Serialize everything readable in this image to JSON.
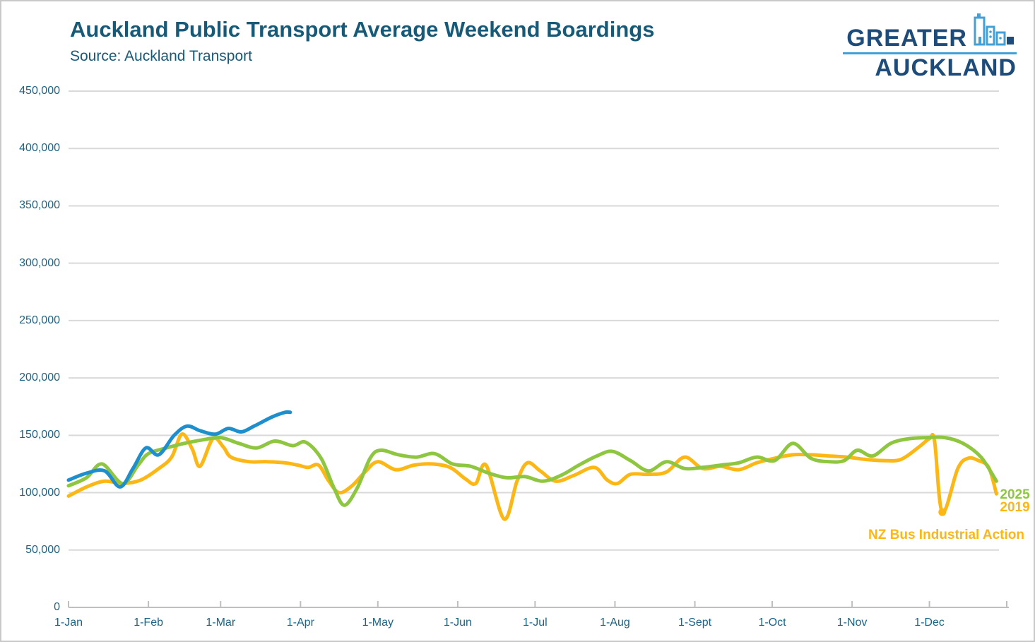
{
  "page": {
    "title": "Auckland Public Transport Average Weekend Boardings",
    "source": "Source: Auckland Transport"
  },
  "logo": {
    "top": "GREATER",
    "bottom": "AUCKLAND",
    "skyline_icon": "city-skyline",
    "navy": "#1d4b7a",
    "light_blue": "#42a0d8"
  },
  "colors": {
    "title_text": "#175a78",
    "axis_text": "#1d6484",
    "gridline": "#d9d9d9",
    "axis_line": "#bfbfbf",
    "blue_series": "#1e8fce",
    "green_series": "#8ec63f",
    "orange_series": "#fdb714"
  },
  "chart_data": {
    "type": "line",
    "title": "Auckland Public Transport Average Weekend Boardings",
    "subtitle": "Source: Auckland Transport",
    "grid": "horizontal",
    "legend_style": "end-of-line-labels",
    "x_axis": {
      "labels": [
        "1-Jan",
        "1-Feb",
        "1-Mar",
        "1-Apr",
        "1-May",
        "1-Jun",
        "1-Jul",
        "1-Aug",
        "1-Sept",
        "1-Oct",
        "1-Nov",
        "1-Dec"
      ],
      "label_days": [
        0,
        31,
        59,
        90,
        120,
        151,
        181,
        212,
        243,
        273,
        304,
        334
      ],
      "range_days": [
        0,
        364
      ]
    },
    "y_axis": {
      "labels": [
        "450,000",
        "400,000",
        "350,000",
        "300,000",
        "250,000",
        "200,000",
        "150,000",
        "100,000",
        "50,000",
        "0"
      ],
      "min": 0,
      "max": 450000,
      "step": 50000
    },
    "series": [
      {
        "id": "blue-partial-year",
        "label": null,
        "color": "#1e8fce",
        "points_day_value": [
          [
            0,
            111000
          ],
          [
            7,
            117000
          ],
          [
            14,
            119000
          ],
          [
            20,
            105000
          ],
          [
            25,
            121000
          ],
          [
            30,
            139000
          ],
          [
            35,
            133000
          ],
          [
            41,
            150000
          ],
          [
            46,
            158000
          ],
          [
            51,
            154000
          ],
          [
            57,
            151000
          ],
          [
            62,
            156000
          ],
          [
            67,
            153000
          ],
          [
            72,
            158000
          ],
          [
            79,
            166000
          ],
          [
            84,
            170000
          ],
          [
            86,
            170000
          ]
        ]
      },
      {
        "id": "year-2025",
        "label": "2025",
        "color": "#8ec63f",
        "points_day_value": [
          [
            0,
            106000
          ],
          [
            7,
            113000
          ],
          [
            13,
            125000
          ],
          [
            21,
            108000
          ],
          [
            27,
            124000
          ],
          [
            31,
            134000
          ],
          [
            38,
            139000
          ],
          [
            45,
            143000
          ],
          [
            52,
            146000
          ],
          [
            59,
            148000
          ],
          [
            66,
            143000
          ],
          [
            73,
            139000
          ],
          [
            80,
            145000
          ],
          [
            87,
            141000
          ],
          [
            92,
            144000
          ],
          [
            98,
            130000
          ],
          [
            103,
            104000
          ],
          [
            107,
            89000
          ],
          [
            112,
            104000
          ],
          [
            117,
            130000
          ],
          [
            121,
            137000
          ],
          [
            128,
            133000
          ],
          [
            135,
            131000
          ],
          [
            142,
            134000
          ],
          [
            149,
            125000
          ],
          [
            156,
            123000
          ],
          [
            163,
            117000
          ],
          [
            170,
            113000
          ],
          [
            177,
            114000
          ],
          [
            184,
            110000
          ],
          [
            191,
            115000
          ],
          [
            198,
            124000
          ],
          [
            205,
            132000
          ],
          [
            211,
            136000
          ],
          [
            218,
            128000
          ],
          [
            225,
            119000
          ],
          [
            232,
            127000
          ],
          [
            239,
            121000
          ],
          [
            246,
            122000
          ],
          [
            253,
            124000
          ],
          [
            260,
            126000
          ],
          [
            267,
            131000
          ],
          [
            274,
            128000
          ],
          [
            281,
            143000
          ],
          [
            288,
            130000
          ],
          [
            295,
            127000
          ],
          [
            301,
            128000
          ],
          [
            306,
            137000
          ],
          [
            312,
            132000
          ],
          [
            319,
            143000
          ],
          [
            326,
            147000
          ],
          [
            333,
            148000
          ],
          [
            340,
            148000
          ],
          [
            347,
            143000
          ],
          [
            354,
            131000
          ],
          [
            360,
            110000
          ]
        ]
      },
      {
        "id": "year-2019",
        "label": "2019",
        "color": "#fdb714",
        "points_day_value": [
          [
            0,
            97000
          ],
          [
            7,
            105000
          ],
          [
            14,
            110000
          ],
          [
            21,
            108000
          ],
          [
            28,
            111000
          ],
          [
            35,
            121000
          ],
          [
            40,
            131000
          ],
          [
            44,
            151000
          ],
          [
            48,
            138000
          ],
          [
            51,
            123000
          ],
          [
            56,
            147000
          ],
          [
            60,
            140000
          ],
          [
            63,
            131000
          ],
          [
            70,
            127000
          ],
          [
            77,
            127000
          ],
          [
            84,
            126000
          ],
          [
            89,
            124000
          ],
          [
            93,
            122000
          ],
          [
            97,
            124000
          ],
          [
            101,
            110000
          ],
          [
            105,
            100000
          ],
          [
            110,
            106000
          ],
          [
            115,
            118000
          ],
          [
            120,
            127000
          ],
          [
            127,
            120000
          ],
          [
            134,
            124000
          ],
          [
            141,
            125000
          ],
          [
            148,
            122000
          ],
          [
            154,
            112000
          ],
          [
            158,
            108000
          ],
          [
            162,
            124000
          ],
          [
            169,
            77000
          ],
          [
            174,
            110000
          ],
          [
            178,
            126000
          ],
          [
            183,
            119000
          ],
          [
            189,
            110000
          ],
          [
            196,
            115000
          ],
          [
            204,
            122000
          ],
          [
            209,
            111000
          ],
          [
            213,
            108000
          ],
          [
            218,
            116000
          ],
          [
            225,
            116000
          ],
          [
            232,
            118000
          ],
          [
            239,
            131000
          ],
          [
            246,
            121000
          ],
          [
            253,
            123000
          ],
          [
            260,
            120000
          ],
          [
            267,
            126000
          ],
          [
            274,
            130000
          ],
          [
            281,
            133000
          ],
          [
            288,
            133000
          ],
          [
            295,
            132000
          ],
          [
            302,
            131000
          ],
          [
            309,
            129000
          ],
          [
            316,
            128000
          ],
          [
            323,
            129000
          ],
          [
            330,
            140000
          ],
          [
            334,
            147000
          ],
          [
            336,
            145000
          ],
          [
            339,
            83000
          ],
          [
            345,
            121000
          ],
          [
            349,
            130000
          ],
          [
            353,
            128000
          ],
          [
            357,
            122000
          ],
          [
            360,
            99000
          ]
        ]
      }
    ],
    "annotation": {
      "text": "NZ Bus Industrial Action",
      "color": "#fdb714",
      "marker": {
        "series": "year-2019",
        "day": 339,
        "value": 83000
      }
    }
  }
}
